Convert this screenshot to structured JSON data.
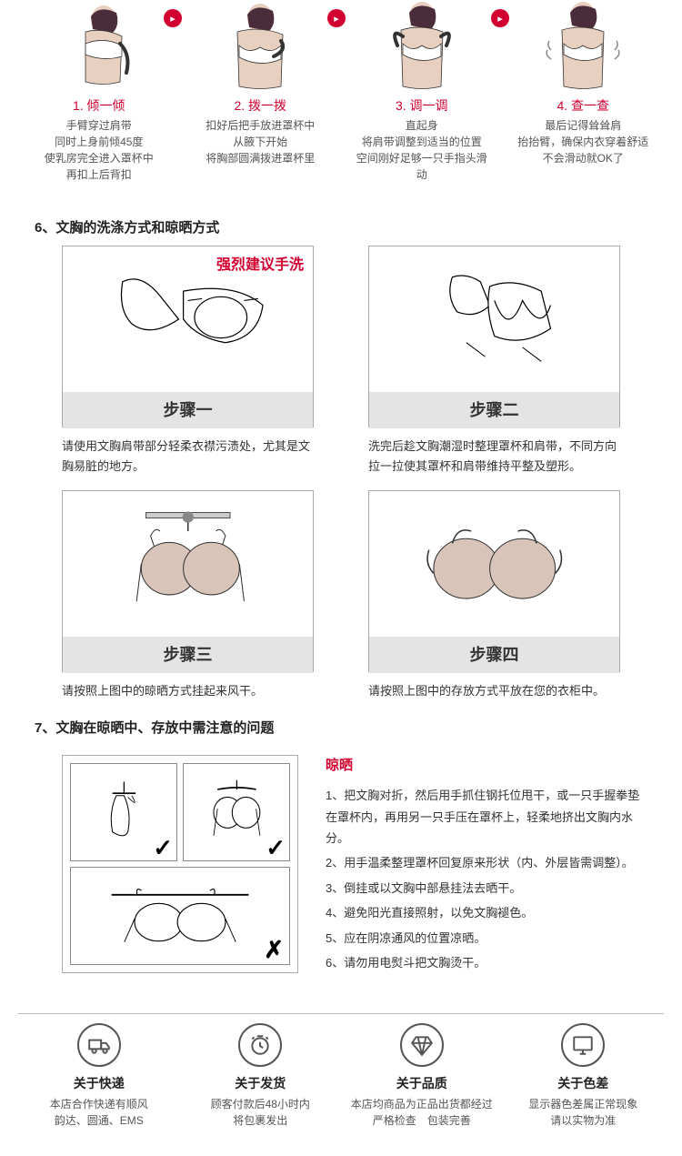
{
  "colors": {
    "accent": "#d20030",
    "gray_bg": "#e4e4e4",
    "text": "#333333",
    "muted": "#555555",
    "border": "#aaaaaa",
    "skin": "#e8d0c0",
    "hair": "#4a2c3a"
  },
  "wearing_steps": [
    {
      "title": "1. 倾一倾",
      "text": "手臂穿过肩带\n同时上身前倾45度\n使乳房完全进入罩杯中\n再扣上后背扣"
    },
    {
      "title": "2. 拨一拨",
      "text": "扣好后把手放进罩杯中\n从腋下开始\n将胸部圆满拨进罩杯里"
    },
    {
      "title": "3. 调一调",
      "text": "直起身\n将肩带调整到适当的位置\n空间刚好足够一只手指头滑动"
    },
    {
      "title": "4. 查一查",
      "text": "最后记得耸耸肩\n抬抬臂，确保内衣穿着舒适\n不会滑动就OK了"
    }
  ],
  "section6_title": "6、文胸的洗涤方式和晾晒方式",
  "wash_note": "强烈建议手洗",
  "wash_steps": [
    {
      "label": "步骤一",
      "caption": "请使用文胸肩带部分轻柔衣襟污渍处，尤其是文胸易脏的地方。"
    },
    {
      "label": "步骤二",
      "caption": "洗完后趁文胸潮湿时整理罩杯和肩带，不同方向拉一拉使其罩杯和肩带维持平整及塑形。"
    },
    {
      "label": "步骤三",
      "caption": "请按照上图中的晾晒方式挂起来风干。"
    },
    {
      "label": "步骤四",
      "caption": "请按照上图中的存放方式平放在您的衣柜中。"
    }
  ],
  "section7_title": "7、文胸在晾晒中、存放中需注意的问题",
  "dry_title": "晾晒",
  "dry_items": [
    "1、把文胸对折，然后用手抓住钢托位甩干，或一只手握拳垫在罩杯内，再用另一只手压在罩杯上，轻柔地挤出文胸内水分。",
    "2、用手温柔整理罩杯回复原来形状（内、外层皆需调整）。",
    "3、倒挂或以文胸中部悬挂法去晒干。",
    "4、避免阳光直接照射，以免文胸褪色。",
    "5、应在阴凉通风的位置凉晒。",
    "6、请勿用电熨斗把文胸烫干。"
  ],
  "footer": [
    {
      "title": "关于快递",
      "text": "本店合作快递有顺风\n韵达、圆通、EMS"
    },
    {
      "title": "关于发货",
      "text": "顾客付款后48小时内\n将包裹发出"
    },
    {
      "title": "关于品质",
      "text": "本店均商品为正品出货都经过\n严格检查　包装完善"
    },
    {
      "title": "关于色差",
      "text": "显示器色差属正常现象\n请以实物为准"
    }
  ]
}
